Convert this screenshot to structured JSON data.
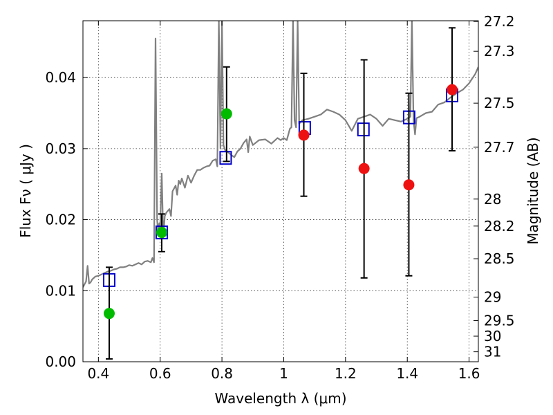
{
  "chart_data": {
    "type": "scatter",
    "xlabel": "Wavelength  λ (μm)",
    "ylabel_left": "Flux  Fν  ( μJy )",
    "ylabel_right": "Magnitude (AB)",
    "xlim": [
      0.35,
      1.63
    ],
    "ylim": [
      0.0,
      0.048
    ],
    "grid": true,
    "x_ticks": [
      0.4,
      0.6,
      0.8,
      1.0,
      1.2,
      1.4,
      1.6
    ],
    "x_tick_labels": [
      "0.4",
      "0.6",
      "0.8",
      "1",
      "1.2",
      "1.4",
      "1.6"
    ],
    "y_ticks": [
      0.0,
      0.01,
      0.02,
      0.03,
      0.04
    ],
    "y_tick_labels": [
      "0.00",
      "0.01",
      "0.02",
      "0.03",
      "0.04"
    ],
    "mag_ticks": [
      {
        "label": "27.2",
        "flux": 0.0479
      },
      {
        "label": "27.3",
        "flux": 0.0437
      },
      {
        "label": "27.5",
        "flux": 0.0364
      },
      {
        "label": "27.7",
        "flux": 0.0302
      },
      {
        "label": "28",
        "flux": 0.0229
      },
      {
        "label": "28.2",
        "flux": 0.0191
      },
      {
        "label": "28.5",
        "flux": 0.0145
      },
      {
        "label": "29",
        "flux": 0.0091
      },
      {
        "label": "29.5",
        "flux": 0.0058
      },
      {
        "label": "30",
        "flux": 0.0036
      },
      {
        "label": "31",
        "flux": 0.0014
      }
    ],
    "series": [
      {
        "kind": "line",
        "color": "#808080",
        "x": [
          0.35,
          0.36,
          0.365,
          0.37,
          0.375,
          0.38,
          0.39,
          0.4,
          0.41,
          0.42,
          0.43,
          0.44,
          0.45,
          0.46,
          0.47,
          0.48,
          0.49,
          0.5,
          0.51,
          0.52,
          0.53,
          0.54,
          0.55,
          0.56,
          0.57,
          0.575,
          0.58,
          0.585,
          0.59,
          0.593,
          0.597,
          0.6,
          0.605,
          0.61,
          0.615,
          0.62,
          0.63,
          0.635,
          0.64,
          0.65,
          0.655,
          0.66,
          0.665,
          0.67,
          0.68,
          0.69,
          0.7,
          0.71,
          0.72,
          0.73,
          0.74,
          0.75,
          0.76,
          0.77,
          0.78,
          0.785,
          0.79,
          0.795,
          0.8,
          0.805,
          0.81,
          0.82,
          0.83,
          0.84,
          0.85,
          0.86,
          0.87,
          0.88,
          0.885,
          0.89,
          0.9,
          0.92,
          0.94,
          0.96,
          0.98,
          0.99,
          1.0,
          1.01,
          1.02,
          1.025,
          1.03,
          1.035,
          1.04,
          1.045,
          1.05,
          1.06,
          1.08,
          1.1,
          1.12,
          1.14,
          1.16,
          1.18,
          1.2,
          1.22,
          1.24,
          1.26,
          1.28,
          1.3,
          1.32,
          1.34,
          1.36,
          1.38,
          1.4,
          1.41,
          1.415,
          1.42,
          1.425,
          1.43,
          1.44,
          1.46,
          1.48,
          1.5,
          1.52,
          1.54,
          1.56,
          1.58,
          1.6,
          1.62,
          1.63
        ],
        "y": [
          0.0105,
          0.0113,
          0.0135,
          0.011,
          0.0112,
          0.0116,
          0.012,
          0.0121,
          0.0123,
          0.0125,
          0.0127,
          0.0128,
          0.013,
          0.0131,
          0.0133,
          0.0133,
          0.0134,
          0.0136,
          0.0135,
          0.0137,
          0.0139,
          0.0137,
          0.0141,
          0.0142,
          0.014,
          0.0146,
          0.014,
          0.0455,
          0.02,
          0.0182,
          0.0195,
          0.0188,
          0.0265,
          0.0175,
          0.0205,
          0.021,
          0.0215,
          0.0205,
          0.024,
          0.0248,
          0.0235,
          0.0255,
          0.025,
          0.0258,
          0.0245,
          0.0262,
          0.0252,
          0.0262,
          0.027,
          0.027,
          0.0273,
          0.0275,
          0.0276,
          0.0283,
          0.0285,
          0.0275,
          0.06,
          0.03,
          0.06,
          0.0305,
          0.0298,
          0.0295,
          0.0291,
          0.0288,
          0.0296,
          0.03,
          0.0308,
          0.0313,
          0.0295,
          0.0317,
          0.0305,
          0.0312,
          0.0313,
          0.0307,
          0.0315,
          0.0312,
          0.0315,
          0.0312,
          0.0328,
          0.033,
          0.06,
          0.034,
          0.033,
          0.06,
          0.0335,
          0.034,
          0.0342,
          0.0345,
          0.0348,
          0.0355,
          0.0352,
          0.0348,
          0.034,
          0.0325,
          0.0342,
          0.0345,
          0.0348,
          0.0342,
          0.0332,
          0.0342,
          0.034,
          0.0338,
          0.0342,
          0.0345,
          0.06,
          0.034,
          0.032,
          0.0343,
          0.0345,
          0.035,
          0.0352,
          0.0362,
          0.0365,
          0.0372,
          0.0378,
          0.0383,
          0.0392,
          0.0405,
          0.0415
        ]
      },
      {
        "kind": "open-square",
        "color": "#0000cc",
        "x": [
          0.435,
          0.605,
          0.812,
          1.068,
          1.258,
          1.406,
          1.545
        ],
        "y": [
          0.0115,
          0.0182,
          0.0287,
          0.0329,
          0.0327,
          0.0344,
          0.0375
        ]
      },
      {
        "kind": "filled-circle",
        "color": "#00bb00",
        "x": [
          0.435,
          0.605,
          0.815
        ],
        "y": [
          0.0068,
          0.0182,
          0.0349
        ]
      },
      {
        "kind": "filled-circle",
        "color": "#ee1111",
        "x": [
          1.065,
          1.26,
          1.405,
          1.545
        ],
        "y": [
          0.0319,
          0.0272,
          0.0249,
          0.0383
        ]
      },
      {
        "kind": "errorbar",
        "color": "#000000",
        "x": [
          0.435,
          0.605,
          0.815,
          1.065,
          1.26,
          1.405,
          1.545
        ],
        "y_low": [
          0.0004,
          0.0155,
          0.0282,
          0.0233,
          0.0118,
          0.0121,
          0.0297
        ],
        "y_high": [
          0.0133,
          0.0208,
          0.0415,
          0.0406,
          0.0425,
          0.0378,
          0.047
        ]
      }
    ]
  }
}
